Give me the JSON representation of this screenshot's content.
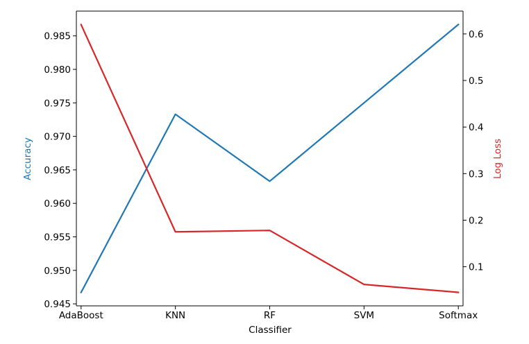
{
  "chart_data": {
    "type": "line",
    "title": "",
    "xlabel": "Classifier",
    "categories": [
      "AdaBoost",
      "KNN",
      "RF",
      "SVM",
      "Softmax"
    ],
    "grid": false,
    "legend": "none",
    "series": [
      {
        "name": "Accuracy",
        "axis": "left",
        "color": "#1f77b4",
        "values": [
          0.9467,
          0.9733,
          0.9633,
          0.975,
          0.9867
        ]
      },
      {
        "name": "Log Loss",
        "axis": "right",
        "color": "#d62728",
        "values": [
          0.62,
          0.175,
          0.178,
          0.062,
          0.045
        ]
      }
    ],
    "y_left": {
      "label": "Accuracy",
      "color": "#1f77b4",
      "ylim": [
        0.9447,
        0.9887
      ],
      "ticks": [
        0.945,
        0.95,
        0.955,
        0.96,
        0.965,
        0.97,
        0.975,
        0.98,
        0.985
      ],
      "tick_labels": [
        "0.945",
        "0.950",
        "0.955",
        "0.960",
        "0.965",
        "0.970",
        "0.975",
        "0.980",
        "0.985"
      ]
    },
    "y_right": {
      "label": "Log Loss",
      "color": "#d62728",
      "ylim": [
        0.016,
        0.649
      ],
      "ticks": [
        0.1,
        0.2,
        0.3,
        0.4,
        0.5,
        0.6
      ],
      "tick_labels": [
        "0.1",
        "0.2",
        "0.3",
        "0.4",
        "0.5",
        "0.6"
      ]
    }
  }
}
